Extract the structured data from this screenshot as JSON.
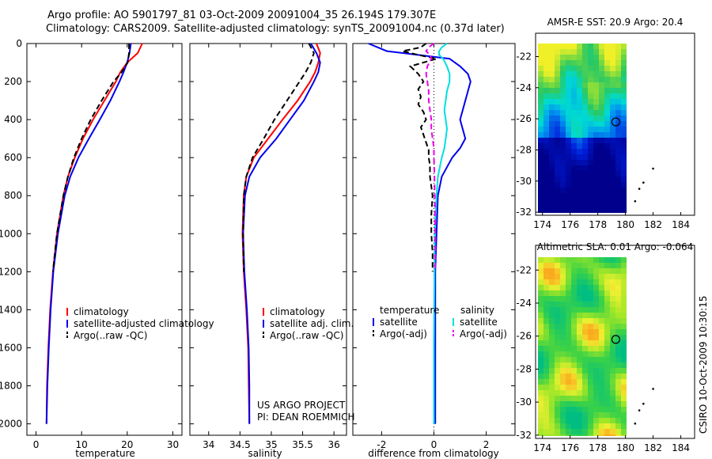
{
  "title_line1": "Argo profile: AO 5901797_81 03-Oct-2009 20091004_35 26.194S 179.307E",
  "title_line2": "Climatology: CARS2009. Satellite-adjusted climatology: synTS_20091004.nc (0.37d later)",
  "sst_title": "AMSR-E SST: 20.9 Argo: 20.4",
  "sla_title": "Altimetric SLA: 0.01  Argo: -0.064",
  "credit": "CSIRO 10-Oct-2009 10:30:15",
  "project_line1": "US ARGO PROJECT",
  "project_line2": "PI: DEAN ROEMMICH",
  "colors": {
    "climatology": "#ff0000",
    "satellite": "#0000ee",
    "argo": "#000000",
    "salinity_satellite": "#00e0e0",
    "salinity_argo": "#ee00ee"
  },
  "chart_data": [
    {
      "type": "line",
      "id": "temperature",
      "xlabel": "temperature",
      "ylabel": "",
      "xlim": [
        -2,
        32
      ],
      "ylim": [
        2060,
        0
      ],
      "y_reversed": true,
      "xticks": [
        0,
        10,
        20,
        30
      ],
      "yticks": [
        0,
        200,
        400,
        600,
        800,
        1000,
        1200,
        1400,
        1600,
        1800,
        2000
      ],
      "legend": {
        "position": "bottom-right",
        "entries": [
          "climatology",
          "satellite-adjusted climatology",
          "Argo(..raw -QC)"
        ]
      },
      "series": [
        {
          "name": "climatology",
          "style": "solid",
          "color": "#ff0000",
          "depth": [
            0,
            50,
            100,
            150,
            200,
            300,
            400,
            500,
            600,
            700,
            800,
            1000,
            1200,
            1400,
            1600,
            1800,
            2000
          ],
          "values": [
            23.3,
            22.3,
            20.0,
            18.5,
            17.5,
            15.0,
            12.5,
            10.3,
            8.5,
            7.0,
            6.0,
            4.6,
            3.7,
            3.1,
            2.7,
            2.4,
            2.3
          ]
        },
        {
          "name": "satellite-adjusted climatology",
          "style": "solid",
          "color": "#0000ee",
          "depth": [
            0,
            50,
            100,
            150,
            200,
            300,
            400,
            500,
            600,
            700,
            800,
            1000,
            1200,
            1400,
            1600,
            1800,
            2000
          ],
          "values": [
            20.8,
            20.5,
            20.0,
            19.2,
            18.3,
            16.3,
            14.0,
            11.6,
            9.3,
            7.5,
            6.3,
            4.8,
            3.8,
            3.2,
            2.8,
            2.5,
            2.3
          ]
        },
        {
          "name": "Argo(..raw -QC)",
          "style": "dashed",
          "color": "#000000",
          "depth": [
            0,
            50,
            100,
            150,
            200,
            300,
            400,
            500,
            600,
            700,
            800,
            1000,
            1200
          ],
          "values": [
            20.4,
            20.4,
            20.1,
            18.8,
            17.0,
            14.4,
            12.0,
            10.0,
            8.3,
            7.0,
            6.0,
            4.6,
            3.7
          ]
        }
      ]
    },
    {
      "type": "line",
      "id": "salinity",
      "xlabel": "salinity",
      "ylabel": "",
      "xlim": [
        33.7,
        36.2
      ],
      "ylim": [
        2060,
        0
      ],
      "y_reversed": true,
      "xticks": [
        34,
        34.5,
        35,
        35.5,
        36
      ],
      "legend": {
        "position": "bottom-right",
        "entries": [
          "climatology",
          "satellite adj. clim.",
          "Argo(..raw -QC)"
        ]
      },
      "series": [
        {
          "name": "climatology",
          "style": "solid",
          "color": "#ff0000",
          "depth": [
            0,
            50,
            100,
            150,
            200,
            300,
            400,
            500,
            600,
            700,
            800,
            1000,
            1200,
            1400,
            1600,
            1800,
            2000
          ],
          "values": [
            35.72,
            35.78,
            35.75,
            35.7,
            35.62,
            35.42,
            35.18,
            34.95,
            34.72,
            34.6,
            34.56,
            34.54,
            34.56,
            34.6,
            34.63,
            34.64,
            34.65
          ]
        },
        {
          "name": "satellite adj. clim.",
          "style": "solid",
          "color": "#0000ee",
          "depth": [
            0,
            50,
            100,
            150,
            200,
            300,
            400,
            500,
            600,
            700,
            800,
            1000,
            1200,
            1400,
            1600,
            1800,
            2000
          ],
          "values": [
            35.63,
            35.72,
            35.78,
            35.75,
            35.68,
            35.52,
            35.3,
            35.08,
            34.82,
            34.65,
            34.58,
            34.55,
            34.57,
            34.61,
            34.64,
            34.65,
            34.65
          ]
        },
        {
          "name": "Argo(..raw -QC)",
          "style": "dashed",
          "color": "#000000",
          "depth": [
            0,
            50,
            100,
            150,
            200,
            300,
            400,
            500,
            600,
            700,
            800,
            1000,
            1200
          ],
          "values": [
            35.6,
            35.68,
            35.63,
            35.55,
            35.45,
            35.25,
            35.05,
            34.88,
            34.7,
            34.6,
            34.56,
            34.55,
            34.56
          ]
        }
      ]
    },
    {
      "type": "line",
      "id": "difference",
      "xlabel": "difference from climatology",
      "ylabel": "",
      "xlim": [
        -3.1,
        3.1
      ],
      "ylim": [
        2060,
        0
      ],
      "y_reversed": true,
      "xticks": [
        -2,
        0,
        2
      ],
      "legend": {
        "position": "bottom-right",
        "entries": [
          "temperature",
          "satellite",
          "Argo(-adj)",
          "salinity",
          "satellite",
          "Argo(-adj)"
        ]
      },
      "series": [
        {
          "name": "satellite",
          "group": "temperature",
          "style": "solid",
          "color": "#0000ee",
          "depth": [
            0,
            40,
            80,
            120,
            160,
            200,
            250,
            300,
            350,
            400,
            450,
            500,
            550,
            600,
            650,
            700,
            800,
            1000,
            1200,
            1400,
            1600,
            1800,
            2000
          ],
          "values": [
            -2.5,
            -1.8,
            0.6,
            1.0,
            1.3,
            1.4,
            1.3,
            1.2,
            1.1,
            1.0,
            1.1,
            1.2,
            1.0,
            0.7,
            0.5,
            0.3,
            0.15,
            0.1,
            0.05,
            0.05,
            0.05,
            0.05,
            0.05
          ]
        },
        {
          "name": "Argo(-adj)",
          "group": "temperature",
          "style": "dashed",
          "color": "#000000",
          "depth": [
            0,
            20,
            40,
            60,
            80,
            120,
            160,
            200,
            240,
            280,
            320,
            360,
            400,
            440,
            480,
            520,
            560,
            600,
            640,
            700,
            800,
            900,
            1000,
            1100,
            1200
          ],
          "values": [
            -0.3,
            -0.5,
            -1.2,
            -0.6,
            0.1,
            -0.9,
            -0.6,
            -0.4,
            -0.6,
            -0.5,
            -0.6,
            -0.4,
            -0.3,
            -0.5,
            -0.4,
            -0.3,
            -0.2,
            -0.2,
            -0.15,
            -0.15,
            -0.05,
            -0.1,
            -0.1,
            -0.05,
            -0.05
          ]
        },
        {
          "name": "satellite",
          "group": "salinity",
          "style": "solid",
          "color": "#00e0e0",
          "depth": [
            0,
            20,
            40,
            60,
            80,
            120,
            160,
            200,
            250,
            300,
            350,
            400,
            450,
            500,
            550,
            600,
            700,
            800,
            1000,
            1200,
            1400,
            1600,
            1800,
            2000
          ],
          "values": [
            0.5,
            0.3,
            0.2,
            0.2,
            0.35,
            0.5,
            0.6,
            0.6,
            0.5,
            0.45,
            0.4,
            0.45,
            0.5,
            0.45,
            0.4,
            0.3,
            0.15,
            0.1,
            0.03,
            0.02,
            0.01,
            0.0,
            0.0,
            0.0
          ]
        },
        {
          "name": "Argo(-adj)",
          "group": "salinity",
          "style": "dashed",
          "color": "#ee00ee",
          "depth": [
            0,
            20,
            40,
            60,
            80,
            120,
            160,
            200,
            250,
            300,
            350,
            400,
            450,
            500,
            550,
            600,
            700,
            800,
            1000,
            1200
          ],
          "values": [
            0.0,
            -0.2,
            -0.3,
            -0.15,
            -0.1,
            -0.25,
            -0.3,
            -0.25,
            -0.2,
            -0.2,
            -0.15,
            -0.1,
            -0.1,
            -0.05,
            0.0,
            0.0,
            0.02,
            0.03,
            0.05,
            0.05
          ]
        }
      ]
    },
    {
      "type": "heatmap",
      "id": "sst_map",
      "title": "AMSR-E SST: 20.9 Argo: 20.4",
      "xlim": [
        173.5,
        185
      ],
      "ylim": [
        -32.2,
        -20.5
      ],
      "xticks": [
        174,
        176,
        178,
        180,
        182,
        184
      ],
      "yticks": [
        -22,
        -24,
        -26,
        -28,
        -30,
        -32
      ],
      "float_position": [
        179.3,
        -26.2
      ]
    },
    {
      "type": "heatmap",
      "id": "sla_map",
      "title": "Altimetric SLA: 0.01  Argo: -0.064",
      "xlim": [
        173.5,
        185
      ],
      "ylim": [
        -32.2,
        -20.5
      ],
      "xticks": [
        174,
        176,
        178,
        180,
        182,
        184
      ],
      "yticks": [
        -22,
        -24,
        -26,
        -28,
        -30,
        -32
      ],
      "float_position": [
        179.3,
        -26.2
      ]
    }
  ]
}
